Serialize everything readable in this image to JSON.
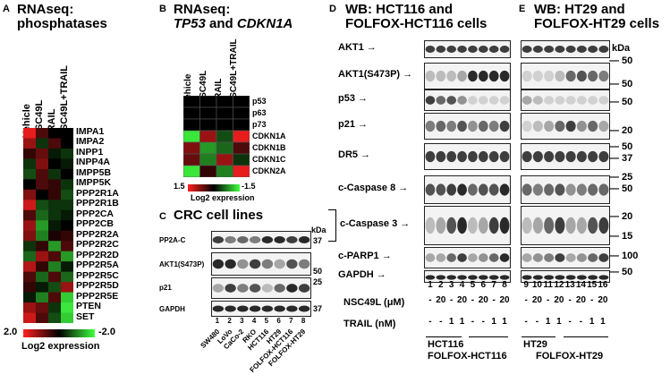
{
  "panelA": {
    "letter": "A",
    "title_line1": "RNAseq:",
    "title_line2": "phosphatases",
    "columns": [
      "Vehicle",
      "NSC49L",
      "TRAIL",
      "NSC49L+TRAIL"
    ],
    "genes": [
      "IMPA1",
      "IMPA2",
      "INPP1",
      "INPP4A",
      "IMPP5B",
      "IMPP5K",
      "PPP2R1A",
      "PPP2R1B",
      "PPP2CA",
      "PPP2CB",
      "PPP2R2A",
      "PPP2R2C",
      "PPP2R2D",
      "PPP2R5A",
      "PPP2R5C",
      "PPP2R5D",
      "PPP2R5E",
      "PTEN",
      "SET"
    ],
    "scale_min": "2.0",
    "scale_max": "-2.0",
    "scale_label": "Log2 expression"
  },
  "panelB": {
    "letter": "B",
    "title_line1": "RNAseq:",
    "title_line2a": "TP53",
    "title_line2b": " and ",
    "title_line2c": "CDKN1A",
    "columns": [
      "Vehicle",
      "NSC49L",
      "TRAIL",
      "NSC49L+TRAIL"
    ],
    "genes": [
      "p53",
      "p63",
      "p73",
      "CDKN1A",
      "CDKN1B",
      "CDKN1C",
      "CDKN2A"
    ],
    "scale_min": "1.5",
    "scale_max": "-1.5",
    "scale_label": "Log2 expression"
  },
  "panelC": {
    "letter": "C",
    "title": "CRC cell lines",
    "kda": "kDa",
    "blots": [
      "PP2A-C",
      "AKT1(S473P)",
      "p21",
      "GAPDH"
    ],
    "markers": [
      "37",
      "50",
      "25",
      "37"
    ],
    "lanes": [
      "1",
      "2",
      "3",
      "4",
      "5",
      "6",
      "7",
      "8"
    ],
    "cell_lines": [
      "SW480",
      "LoVo",
      "CaCo-2",
      "RKO",
      "HCT116",
      "HT29",
      "FOLFOX-HCT116",
      "FOLFOX-HT29"
    ]
  },
  "panelD": {
    "letter": "D",
    "title_line1": "WB: HCT116 and",
    "title_line2": "FOLFOX-HCT116 cells",
    "blots": [
      "AKT1",
      "AKT1(S473P)",
      "p53",
      "p21",
      "DR5",
      "c-Caspase 8",
      "c-Caspase 3",
      "c-PARP1",
      "GAPDH"
    ],
    "lanes": [
      "1",
      "2",
      "3",
      "4",
      "5",
      "6",
      "7",
      "8"
    ],
    "nsc_label": "NSC49L (μM)",
    "nsc": [
      "-",
      "20",
      "-",
      "20",
      "-",
      "20",
      "-",
      "20"
    ],
    "trail_label": "TRAIL (nM)",
    "trail": [
      "-",
      "-",
      "1",
      "1",
      "-",
      "-",
      "1",
      "1"
    ],
    "group1": "HCT116",
    "group2": "FOLFOX-HCT116"
  },
  "panelE": {
    "letter": "E",
    "title_line1": "WB: HT29 and",
    "title_line2": "FOLFOX-HT29 cells",
    "kda": "kDa",
    "markers": [
      "50",
      "50",
      "50",
      "20",
      "50",
      "37",
      "25",
      "50",
      "20",
      "15",
      "100",
      "50"
    ],
    "lanes": [
      "9",
      "10",
      "11",
      "12",
      "13",
      "14",
      "15",
      "16"
    ],
    "nsc": [
      "-",
      "20",
      "-",
      "20",
      "-",
      "20",
      "-",
      "20"
    ],
    "trail": [
      "-",
      "-",
      "1",
      "1",
      "-",
      "-",
      "1",
      "1"
    ],
    "group1": "HT29",
    "group2": "FOLFOX-HT29"
  },
  "colors": {
    "high": "#ff2020",
    "low": "#40ff40",
    "mid": "#000000"
  }
}
